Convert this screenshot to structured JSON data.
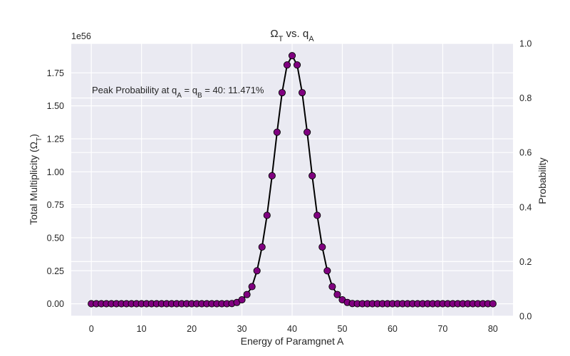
{
  "chart_data": {
    "type": "line",
    "title": "Ω_T vs. q_A",
    "title_main": "Ω",
    "title_main_sub": "T",
    "title_mid": " vs. q",
    "title_end_sub": "A",
    "xlabel": "Energy of Paramgnet A",
    "ylabel": "Total Multiplicity (Ω_T)",
    "ylabel_main": "Total Multiplicity (Ω",
    "ylabel_sub": "T",
    "ylabel_end": ")",
    "y2label": "Probability",
    "offset_text": "1e56",
    "annotation": "Peak Probability at q_A = q_B = 40: 11.471%",
    "annot_a": "Peak Probability at q",
    "annot_a_sub": "A",
    "annot_b": " = q",
    "annot_b_sub": "B",
    "annot_c": " = 40: 11.471%",
    "xlim": [
      -4,
      84
    ],
    "ylim": [
      -0.0939,
      1.973
    ],
    "y2lim": [
      0,
      1.0
    ],
    "xticks": [
      0,
      10,
      20,
      30,
      40,
      50,
      60,
      70,
      80
    ],
    "yticks": [
      0.0,
      0.25,
      0.5,
      0.75,
      1.0,
      1.25,
      1.5,
      1.75
    ],
    "ytick_labels": [
      "0.00",
      "0.25",
      "0.50",
      "0.75",
      "1.00",
      "1.25",
      "1.50",
      "1.75"
    ],
    "y2ticks": [
      0.0,
      0.2,
      0.4,
      0.6,
      0.8,
      1.0
    ],
    "y2tick_labels": [
      "0.0",
      "0.2",
      "0.4",
      "0.6",
      "0.8",
      "1.0"
    ],
    "grid": true,
    "colors": {
      "marker": "#800080",
      "line": "#000000",
      "background": "#eaeaf2",
      "grid": "#ffffff"
    },
    "series": [
      {
        "x": [
          0,
          1,
          2,
          3,
          4,
          5,
          6,
          7,
          8,
          9,
          10,
          11,
          12,
          13,
          14,
          15,
          16,
          17,
          18,
          19,
          20,
          21,
          22,
          23,
          24,
          25,
          26,
          27,
          28,
          29,
          30,
          31,
          32,
          33,
          34,
          35,
          36,
          37,
          38,
          39,
          40,
          41,
          42,
          43,
          44,
          45,
          46,
          47,
          48,
          49,
          50,
          51,
          52,
          53,
          54,
          55,
          56,
          57,
          58,
          59,
          60,
          61,
          62,
          63,
          64,
          65,
          66,
          67,
          68,
          69,
          70,
          71,
          72,
          73,
          74,
          75,
          76,
          77,
          78,
          79,
          80
        ],
        "values": [
          0,
          0,
          0,
          0,
          0,
          0,
          0,
          0,
          0,
          0,
          0,
          0,
          0,
          0,
          0,
          0,
          0,
          0,
          0,
          0,
          0,
          0,
          0,
          0,
          0,
          0,
          0,
          0.0002,
          0.0015,
          0.01,
          0.03,
          0.07,
          0.13,
          0.25,
          0.43,
          0.67,
          0.97,
          1.3,
          1.6,
          1.81,
          1.88,
          1.81,
          1.6,
          1.3,
          0.97,
          0.67,
          0.43,
          0.25,
          0.13,
          0.07,
          0.03,
          0.01,
          0.0015,
          0.0002,
          0,
          0,
          0,
          0,
          0,
          0,
          0,
          0,
          0,
          0,
          0,
          0,
          0,
          0,
          0,
          0,
          0,
          0,
          0,
          0,
          0,
          0,
          0,
          0,
          0,
          0,
          0
        ]
      }
    ]
  }
}
